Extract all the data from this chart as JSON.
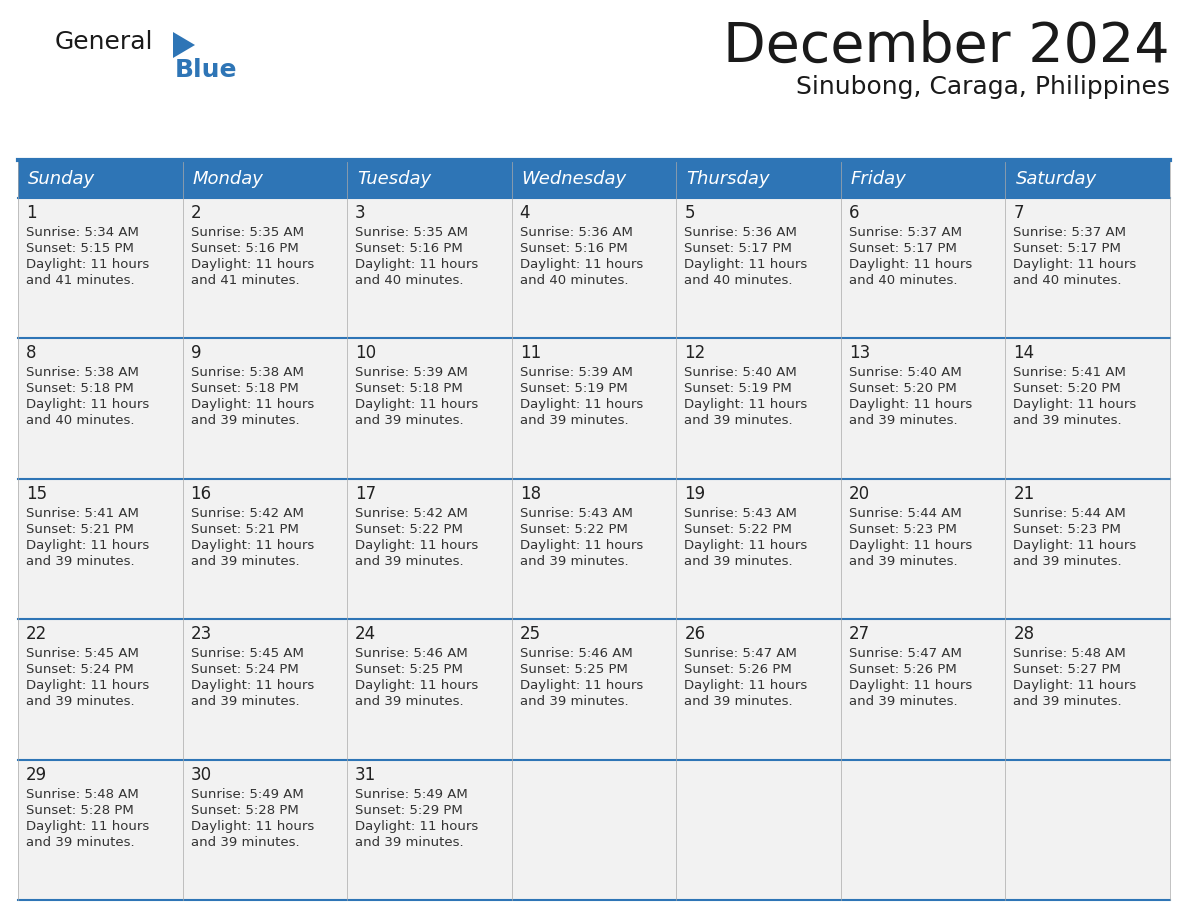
{
  "title": "December 2024",
  "subtitle": "Sinubong, Caraga, Philippines",
  "header_bg": "#2E75B6",
  "header_text_color": "#FFFFFF",
  "cell_bg": "#F2F2F2",
  "border_color": "#2E75B6",
  "text_color": "#333333",
  "day_names": [
    "Sunday",
    "Monday",
    "Tuesday",
    "Wednesday",
    "Thursday",
    "Friday",
    "Saturday"
  ],
  "days": [
    {
      "day": 1,
      "col": 0,
      "row": 0,
      "sunrise": "5:34 AM",
      "sunset": "5:15 PM",
      "daylight_min": 41
    },
    {
      "day": 2,
      "col": 1,
      "row": 0,
      "sunrise": "5:35 AM",
      "sunset": "5:16 PM",
      "daylight_min": 41
    },
    {
      "day": 3,
      "col": 2,
      "row": 0,
      "sunrise": "5:35 AM",
      "sunset": "5:16 PM",
      "daylight_min": 40
    },
    {
      "day": 4,
      "col": 3,
      "row": 0,
      "sunrise": "5:36 AM",
      "sunset": "5:16 PM",
      "daylight_min": 40
    },
    {
      "day": 5,
      "col": 4,
      "row": 0,
      "sunrise": "5:36 AM",
      "sunset": "5:17 PM",
      "daylight_min": 40
    },
    {
      "day": 6,
      "col": 5,
      "row": 0,
      "sunrise": "5:37 AM",
      "sunset": "5:17 PM",
      "daylight_min": 40
    },
    {
      "day": 7,
      "col": 6,
      "row": 0,
      "sunrise": "5:37 AM",
      "sunset": "5:17 PM",
      "daylight_min": 40
    },
    {
      "day": 8,
      "col": 0,
      "row": 1,
      "sunrise": "5:38 AM",
      "sunset": "5:18 PM",
      "daylight_min": 40
    },
    {
      "day": 9,
      "col": 1,
      "row": 1,
      "sunrise": "5:38 AM",
      "sunset": "5:18 PM",
      "daylight_min": 39
    },
    {
      "day": 10,
      "col": 2,
      "row": 1,
      "sunrise": "5:39 AM",
      "sunset": "5:18 PM",
      "daylight_min": 39
    },
    {
      "day": 11,
      "col": 3,
      "row": 1,
      "sunrise": "5:39 AM",
      "sunset": "5:19 PM",
      "daylight_min": 39
    },
    {
      "day": 12,
      "col": 4,
      "row": 1,
      "sunrise": "5:40 AM",
      "sunset": "5:19 PM",
      "daylight_min": 39
    },
    {
      "day": 13,
      "col": 5,
      "row": 1,
      "sunrise": "5:40 AM",
      "sunset": "5:20 PM",
      "daylight_min": 39
    },
    {
      "day": 14,
      "col": 6,
      "row": 1,
      "sunrise": "5:41 AM",
      "sunset": "5:20 PM",
      "daylight_min": 39
    },
    {
      "day": 15,
      "col": 0,
      "row": 2,
      "sunrise": "5:41 AM",
      "sunset": "5:21 PM",
      "daylight_min": 39
    },
    {
      "day": 16,
      "col": 1,
      "row": 2,
      "sunrise": "5:42 AM",
      "sunset": "5:21 PM",
      "daylight_min": 39
    },
    {
      "day": 17,
      "col": 2,
      "row": 2,
      "sunrise": "5:42 AM",
      "sunset": "5:22 PM",
      "daylight_min": 39
    },
    {
      "day": 18,
      "col": 3,
      "row": 2,
      "sunrise": "5:43 AM",
      "sunset": "5:22 PM",
      "daylight_min": 39
    },
    {
      "day": 19,
      "col": 4,
      "row": 2,
      "sunrise": "5:43 AM",
      "sunset": "5:22 PM",
      "daylight_min": 39
    },
    {
      "day": 20,
      "col": 5,
      "row": 2,
      "sunrise": "5:44 AM",
      "sunset": "5:23 PM",
      "daylight_min": 39
    },
    {
      "day": 21,
      "col": 6,
      "row": 2,
      "sunrise": "5:44 AM",
      "sunset": "5:23 PM",
      "daylight_min": 39
    },
    {
      "day": 22,
      "col": 0,
      "row": 3,
      "sunrise": "5:45 AM",
      "sunset": "5:24 PM",
      "daylight_min": 39
    },
    {
      "day": 23,
      "col": 1,
      "row": 3,
      "sunrise": "5:45 AM",
      "sunset": "5:24 PM",
      "daylight_min": 39
    },
    {
      "day": 24,
      "col": 2,
      "row": 3,
      "sunrise": "5:46 AM",
      "sunset": "5:25 PM",
      "daylight_min": 39
    },
    {
      "day": 25,
      "col": 3,
      "row": 3,
      "sunrise": "5:46 AM",
      "sunset": "5:25 PM",
      "daylight_min": 39
    },
    {
      "day": 26,
      "col": 4,
      "row": 3,
      "sunrise": "5:47 AM",
      "sunset": "5:26 PM",
      "daylight_min": 39
    },
    {
      "day": 27,
      "col": 5,
      "row": 3,
      "sunrise": "5:47 AM",
      "sunset": "5:26 PM",
      "daylight_min": 39
    },
    {
      "day": 28,
      "col": 6,
      "row": 3,
      "sunrise": "5:48 AM",
      "sunset": "5:27 PM",
      "daylight_min": 39
    },
    {
      "day": 29,
      "col": 0,
      "row": 4,
      "sunrise": "5:48 AM",
      "sunset": "5:28 PM",
      "daylight_min": 39
    },
    {
      "day": 30,
      "col": 1,
      "row": 4,
      "sunrise": "5:49 AM",
      "sunset": "5:28 PM",
      "daylight_min": 39
    },
    {
      "day": 31,
      "col": 2,
      "row": 4,
      "sunrise": "5:49 AM",
      "sunset": "5:29 PM",
      "daylight_min": 39
    }
  ],
  "num_rows": 5,
  "logo_color_general": "#1a1a1a",
  "logo_color_blue": "#2E75B6",
  "logo_triangle_color": "#2E75B6",
  "title_fontsize": 40,
  "subtitle_fontsize": 18,
  "dayname_fontsize": 13,
  "daynum_fontsize": 12,
  "content_fontsize": 9.5
}
